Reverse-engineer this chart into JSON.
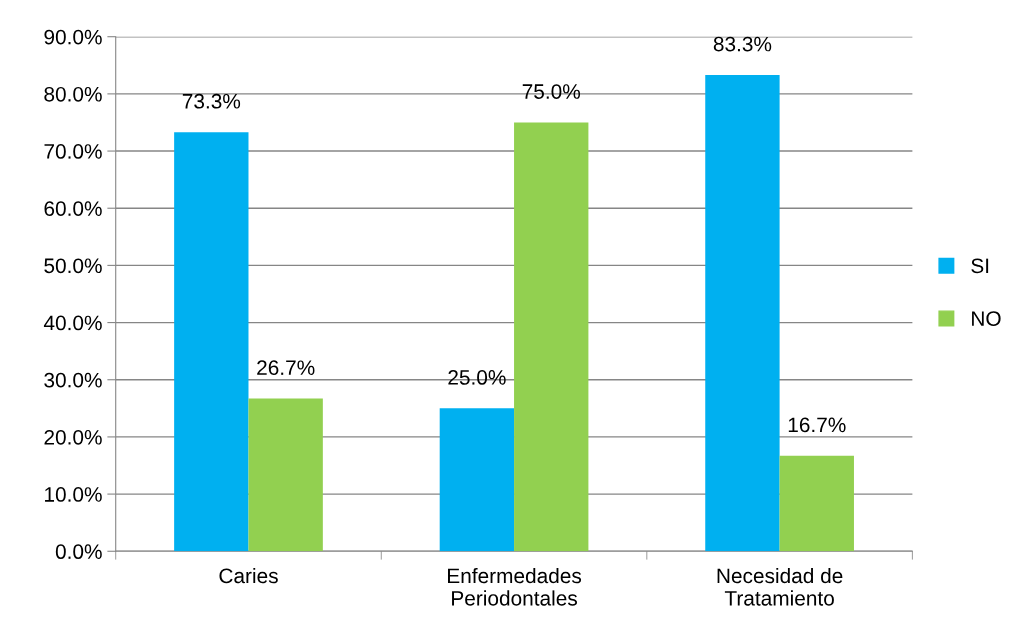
{
  "chart_data": {
    "type": "bar",
    "categories": [
      "Caries",
      "Enfermedades\nPeriodontales",
      "Necesidad de\nTratamiento"
    ],
    "series": [
      {
        "name": "SI",
        "color": "#00b0f0",
        "values": [
          73.3,
          25.0,
          83.3
        ],
        "value_labels": [
          "73.3%",
          "25.0%",
          "83.3%"
        ]
      },
      {
        "name": "NO",
        "color": "#92d050",
        "values": [
          26.7,
          75.0,
          16.7
        ],
        "value_labels": [
          "26.7%",
          "75.0%",
          "16.7%"
        ]
      }
    ],
    "ylim": [
      0,
      90
    ],
    "yticks": [
      {
        "value": 0,
        "label": "0.0%"
      },
      {
        "value": 10,
        "label": "10.0%"
      },
      {
        "value": 20,
        "label": "20.0%"
      },
      {
        "value": 30,
        "label": "30.0%"
      },
      {
        "value": 40,
        "label": "40.0%"
      },
      {
        "value": 50,
        "label": "50.0%"
      },
      {
        "value": 60,
        "label": "60.0%"
      },
      {
        "value": 70,
        "label": "70.0%"
      },
      {
        "value": 80,
        "label": "80.0%"
      },
      {
        "value": 90,
        "label": "90.0%"
      }
    ],
    "grid": "y",
    "legend": "right"
  }
}
